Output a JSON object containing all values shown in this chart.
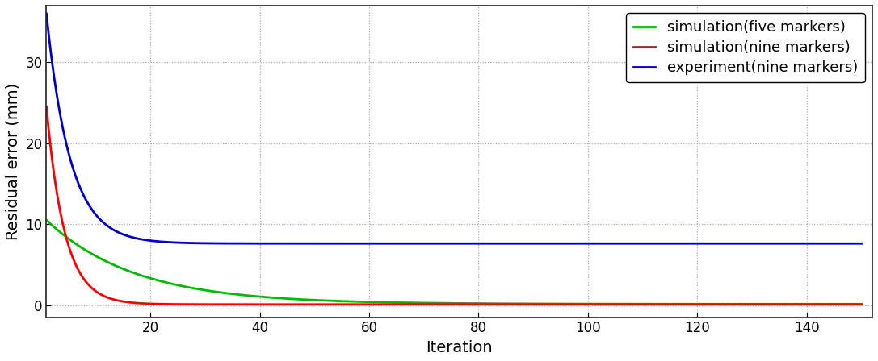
{
  "title": "",
  "xlabel": "Iteration",
  "ylabel": "Residual error (mm)",
  "xlim": [
    1,
    152
  ],
  "ylim": [
    -1.5,
    37
  ],
  "yticks": [
    0,
    10,
    20,
    30
  ],
  "xticks": [
    20,
    40,
    60,
    80,
    100,
    120,
    140
  ],
  "grid_color": "#aaaaaa",
  "background_color": "#ffffff",
  "series": [
    {
      "label": "simulation(five markers)",
      "color": "#00bb00",
      "start_val": 10.5,
      "asymptote": 0.12,
      "decay": 0.062
    },
    {
      "label": "simulation(nine markers)",
      "color": "#ff0000",
      "start_val": 24.5,
      "asymptote": 0.08,
      "decay": 0.3
    },
    {
      "label": "experiment(nine markers)",
      "color": "#0000cc",
      "start_val": 36.0,
      "asymptote": 7.6,
      "decay": 0.23
    }
  ],
  "linewidth": 2.0,
  "legend_fontsize": 13,
  "axis_label_fontsize": 14,
  "tick_fontsize": 12
}
